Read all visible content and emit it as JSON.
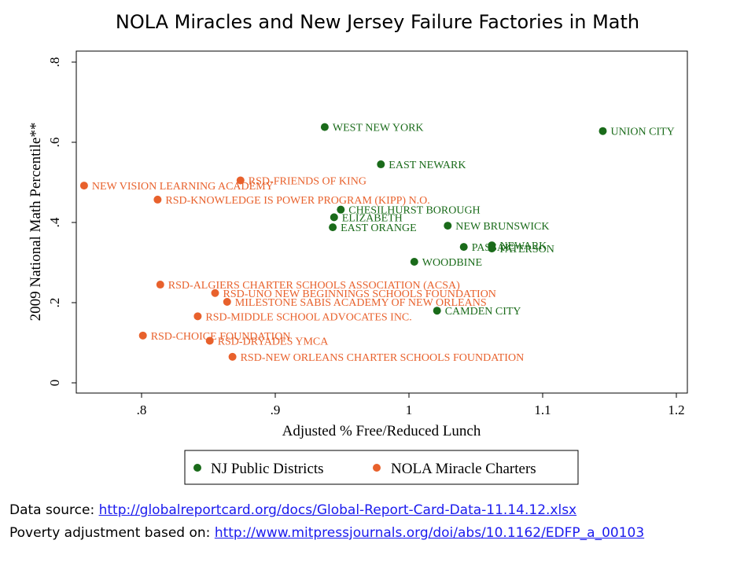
{
  "chart_data": {
    "type": "scatter",
    "title": "NOLA Miracles and New Jersey Failure Factories in Math",
    "xlabel": "Adjusted % Free/Reduced Lunch",
    "ylabel": "2009 National Math Percentile**",
    "xlim": [
      0.75,
      1.2
    ],
    "ylim": [
      0,
      0.8
    ],
    "x_ticks": [
      0.8,
      0.9,
      1,
      1.1,
      1.2
    ],
    "x_tick_labels": [
      ".8",
      ".9",
      "1",
      "1.1",
      "1.2"
    ],
    "y_ticks": [
      0,
      0.2,
      0.4,
      0.6,
      0.8
    ],
    "y_tick_labels": [
      "0",
      ".2",
      ".4",
      ".6",
      ".8"
    ],
    "grid": false,
    "legend_position": "bottom",
    "series": [
      {
        "name": "NJ Public Districts",
        "color": "#1a6b1a",
        "points": [
          {
            "label": "WEST NEW YORK",
            "x": 0.937,
            "y": 0.638
          },
          {
            "label": "UNION CITY",
            "x": 1.145,
            "y": 0.628
          },
          {
            "label": "EAST NEWARK",
            "x": 0.979,
            "y": 0.545
          },
          {
            "label": "CHESILHURST BOROUGH",
            "x": 0.949,
            "y": 0.432
          },
          {
            "label": "ELIZABETH",
            "x": 0.944,
            "y": 0.413
          },
          {
            "label": "NEW BRUNSWICK",
            "x": 1.029,
            "y": 0.392
          },
          {
            "label": "EAST ORANGE",
            "x": 0.943,
            "y": 0.388
          },
          {
            "label": "PASSAIC",
            "x": 1.041,
            "y": 0.339
          },
          {
            "label": "NEWARK",
            "x": 1.062,
            "y": 0.343
          },
          {
            "label": "PATERSON",
            "x": 1.062,
            "y": 0.335
          },
          {
            "label": "WOODBINE",
            "x": 1.004,
            "y": 0.302
          },
          {
            "label": "CAMDEN CITY",
            "x": 1.021,
            "y": 0.18
          }
        ]
      },
      {
        "name": "NOLA Miracle Charters",
        "color": "#e8612c",
        "points": [
          {
            "label": "NEW VISION LEARNING ACADEMY",
            "x": 0.757,
            "y": 0.492
          },
          {
            "label": "RSD-FRIENDS OF KING",
            "x": 0.874,
            "y": 0.505
          },
          {
            "label": "RSD-KNOWLEDGE IS POWER PROGRAM (KIPP) N.O.",
            "x": 0.812,
            "y": 0.457
          },
          {
            "label": "RSD-ALGIERS CHARTER SCHOOLS ASSOCIATION (ACSA)",
            "x": 0.814,
            "y": 0.245
          },
          {
            "label": "RSD-UNO NEW BEGINNINGS SCHOOLS FOUNDATION",
            "x": 0.855,
            "y": 0.224
          },
          {
            "label": "MILESTONE SABIS ACADEMY OF NEW ORLEANS",
            "x": 0.864,
            "y": 0.202
          },
          {
            "label": "RSD-MIDDLE SCHOOL ADVOCATES INC.",
            "x": 0.842,
            "y": 0.166
          },
          {
            "label": "RSD-CHOICE FOUNDATION",
            "x": 0.801,
            "y": 0.118
          },
          {
            "label": "RSD-DRYADES YMCA",
            "x": 0.851,
            "y": 0.105
          },
          {
            "label": "RSD-NEW ORLEANS CHARTER SCHOOLS FOUNDATION",
            "x": 0.868,
            "y": 0.065
          }
        ]
      }
    ]
  },
  "sources": {
    "data_prefix": "Data source: ",
    "data_link": "http://globalreportcard.org/docs/Global-Report-Card-Data-11.14.12.xlsx",
    "poverty_prefix": "Poverty adjustment based on:  ",
    "poverty_link": "http://www.mitpressjournals.org/doi/abs/10.1162/EDFP_a_00103"
  }
}
